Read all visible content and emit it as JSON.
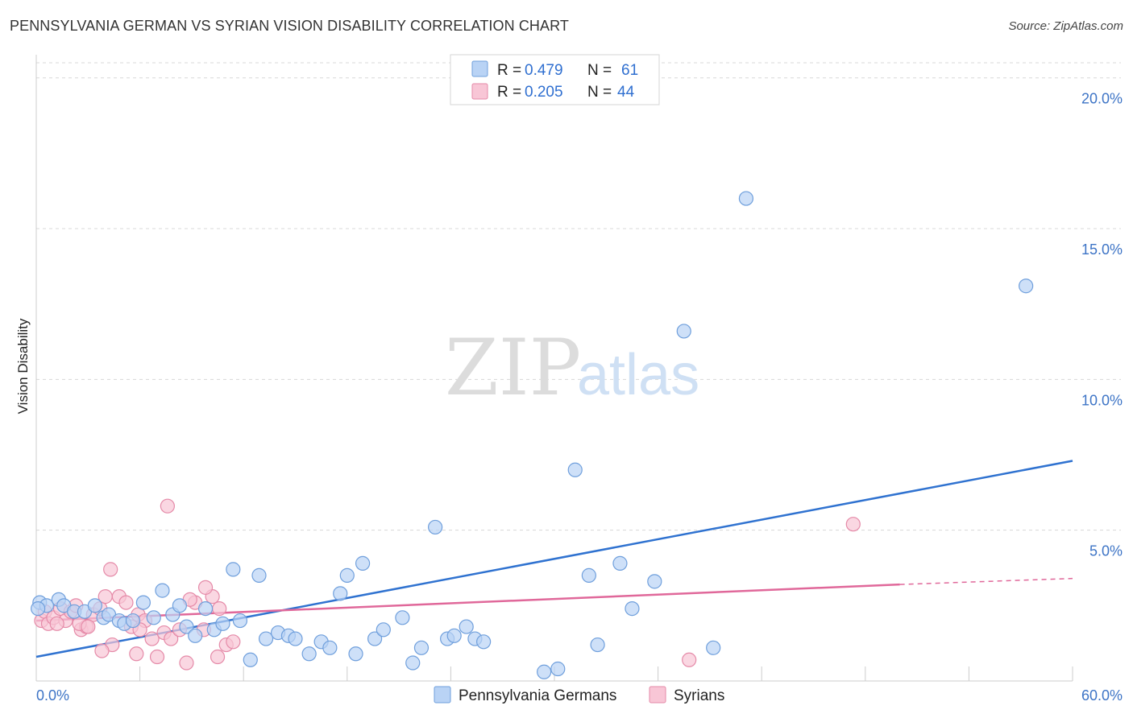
{
  "title": "PENNSYLVANIA GERMAN VS SYRIAN VISION DISABILITY CORRELATION CHART",
  "source": "Source: ZipAtlas.com",
  "watermark": {
    "zip": "ZIP",
    "atlas": "atlas"
  },
  "colors": {
    "blue_fill": "#b9d3f5",
    "blue_stroke": "#6f9fdc",
    "blue_line": "#2f72d0",
    "pink_fill": "#f8c6d6",
    "pink_stroke": "#e58aa8",
    "pink_line": "#e0689a",
    "grid": "#d8d8d8",
    "axis_text": "#3d74c6"
  },
  "legend": {
    "rows": [
      {
        "r_label": "R = ",
        "r_value": "0.479",
        "n_label": "N = ",
        "n_value": "61"
      },
      {
        "r_label": "R = ",
        "r_value": "0.205",
        "n_label": "N = ",
        "n_value": "44"
      }
    ]
  },
  "chart_data": {
    "type": "scatter",
    "title": "PENNSYLVANIA GERMAN VS SYRIAN VISION DISABILITY CORRELATION CHART",
    "xlabel": "",
    "ylabel": "Vision Disability",
    "xlim": [
      0,
      60
    ],
    "ylim": [
      0,
      20.5
    ],
    "x_tick_labels": [
      "0.0%",
      "60.0%"
    ],
    "y_ticks": [
      5,
      10,
      15,
      20
    ],
    "y_tick_labels": [
      "5.0%",
      "10.0%",
      "15.0%",
      "20.0%"
    ],
    "legend_position": "top-center",
    "series": [
      {
        "name": "Pennsylvania Germans",
        "color": "#6f9fdc",
        "trend": {
          "x": [
            0,
            60
          ],
          "y": [
            0.8,
            7.3
          ]
        },
        "points": [
          [
            0.2,
            2.6
          ],
          [
            0.6,
            2.5
          ],
          [
            1.3,
            2.7
          ],
          [
            1.6,
            2.5
          ],
          [
            2.2,
            2.3
          ],
          [
            2.8,
            2.3
          ],
          [
            3.4,
            2.5
          ],
          [
            3.9,
            2.1
          ],
          [
            4.2,
            2.2
          ],
          [
            4.8,
            2.0
          ],
          [
            5.1,
            1.9
          ],
          [
            5.6,
            2.0
          ],
          [
            6.2,
            2.6
          ],
          [
            6.8,
            2.1
          ],
          [
            7.3,
            3.0
          ],
          [
            7.9,
            2.2
          ],
          [
            8.3,
            2.5
          ],
          [
            8.7,
            1.8
          ],
          [
            9.2,
            1.5
          ],
          [
            9.8,
            2.4
          ],
          [
            10.3,
            1.7
          ],
          [
            10.8,
            1.9
          ],
          [
            11.4,
            3.7
          ],
          [
            11.8,
            2.0
          ],
          [
            12.4,
            0.7
          ],
          [
            12.9,
            3.5
          ],
          [
            13.3,
            1.4
          ],
          [
            14.0,
            1.6
          ],
          [
            14.6,
            1.5
          ],
          [
            15.0,
            1.4
          ],
          [
            15.8,
            0.9
          ],
          [
            16.5,
            1.3
          ],
          [
            17.0,
            1.1
          ],
          [
            17.6,
            2.9
          ],
          [
            18.0,
            3.5
          ],
          [
            18.5,
            0.9
          ],
          [
            18.9,
            3.9
          ],
          [
            19.6,
            1.4
          ],
          [
            20.1,
            1.7
          ],
          [
            21.2,
            2.1
          ],
          [
            21.8,
            0.6
          ],
          [
            22.3,
            1.1
          ],
          [
            23.1,
            5.1
          ],
          [
            23.8,
            1.4
          ],
          [
            24.2,
            1.5
          ],
          [
            24.9,
            1.8
          ],
          [
            25.4,
            1.4
          ],
          [
            25.9,
            1.3
          ],
          [
            29.4,
            0.3
          ],
          [
            30.2,
            0.4
          ],
          [
            31.2,
            7.0
          ],
          [
            32.0,
            3.5
          ],
          [
            32.5,
            1.2
          ],
          [
            33.8,
            3.9
          ],
          [
            34.5,
            2.4
          ],
          [
            35.8,
            3.3
          ],
          [
            37.5,
            11.6
          ],
          [
            39.2,
            1.1
          ],
          [
            41.1,
            16.0
          ],
          [
            57.3,
            13.1
          ],
          [
            0.1,
            2.4
          ]
        ]
      },
      {
        "name": "Syrians",
        "color": "#e58aa8",
        "trend": {
          "x": [
            0,
            50
          ],
          "y": [
            2.0,
            3.2
          ]
        },
        "trend_dashed": {
          "x": [
            50,
            60
          ],
          "y": [
            3.2,
            3.4
          ]
        },
        "points": [
          [
            0.3,
            2.0
          ],
          [
            0.5,
            2.3
          ],
          [
            0.7,
            1.9
          ],
          [
            1.0,
            2.1
          ],
          [
            1.4,
            2.4
          ],
          [
            1.7,
            2.0
          ],
          [
            2.0,
            2.3
          ],
          [
            2.3,
            2.5
          ],
          [
            2.6,
            1.7
          ],
          [
            2.9,
            1.8
          ],
          [
            3.3,
            2.2
          ],
          [
            3.7,
            2.4
          ],
          [
            4.0,
            2.8
          ],
          [
            4.4,
            1.2
          ],
          [
            4.8,
            2.8
          ],
          [
            5.2,
            2.6
          ],
          [
            5.5,
            1.8
          ],
          [
            5.9,
            2.2
          ],
          [
            6.3,
            2.0
          ],
          [
            6.7,
            1.4
          ],
          [
            7.0,
            0.8
          ],
          [
            7.4,
            1.6
          ],
          [
            7.8,
            1.4
          ],
          [
            8.3,
            1.7
          ],
          [
            8.7,
            0.6
          ],
          [
            9.2,
            2.6
          ],
          [
            9.7,
            1.7
          ],
          [
            10.2,
            2.8
          ],
          [
            10.6,
            2.4
          ],
          [
            11.0,
            1.2
          ],
          [
            11.4,
            1.3
          ],
          [
            5.8,
            0.9
          ],
          [
            4.3,
            3.7
          ],
          [
            7.6,
            5.8
          ],
          [
            3.8,
            1.0
          ],
          [
            9.8,
            3.1
          ],
          [
            2.5,
            1.9
          ],
          [
            1.2,
            1.9
          ],
          [
            6.0,
            1.7
          ],
          [
            3.0,
            1.8
          ],
          [
            8.9,
            2.7
          ],
          [
            10.5,
            0.8
          ],
          [
            37.8,
            0.7
          ],
          [
            47.3,
            5.2
          ]
        ]
      }
    ]
  }
}
